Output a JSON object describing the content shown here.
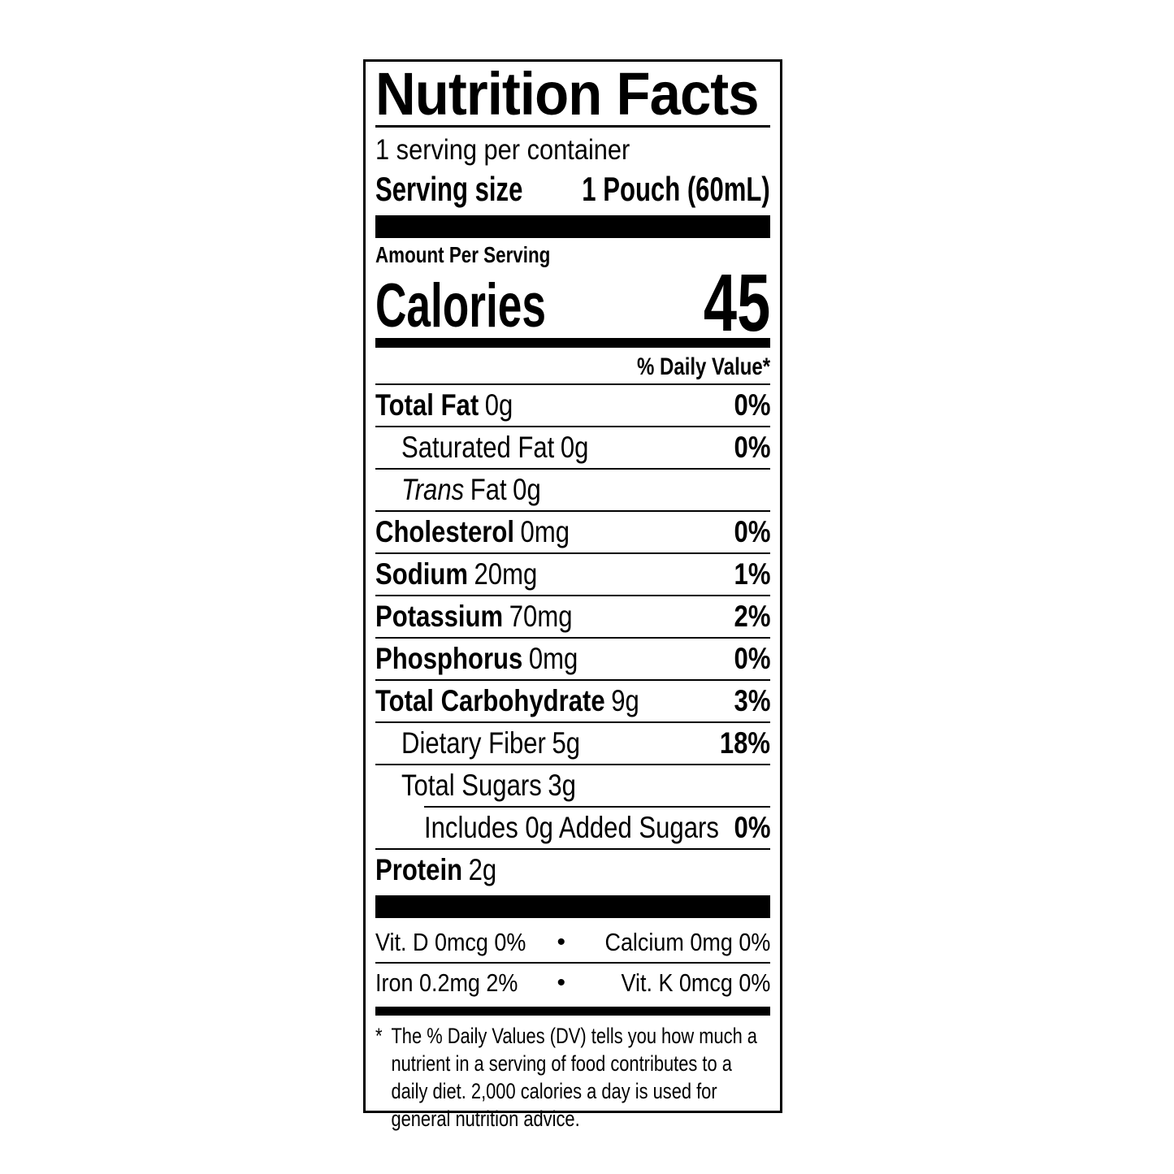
{
  "label": {
    "title": "Nutrition Facts",
    "servings_per_container": "1 serving per container",
    "serving_size": {
      "label": "Serving size",
      "value": "1 Pouch (60mL)"
    },
    "amount_per_serving": "Amount Per Serving",
    "calories": {
      "label": "Calories",
      "value": "45"
    },
    "daily_value_header": "% Daily Value*",
    "rows": [
      {
        "name": "Total Fat",
        "amount": "0g",
        "dv": "0%"
      },
      {
        "name": "Saturated Fat",
        "amount": "0g",
        "dv": "0%"
      },
      {
        "name_italic": "Trans",
        "name": "Fat",
        "amount": "0g",
        "dv": ""
      },
      {
        "name": "Cholesterol",
        "amount": "0mg",
        "dv": "0%"
      },
      {
        "name": "Sodium",
        "amount": "20mg",
        "dv": "1%"
      },
      {
        "name": "Potassium",
        "amount": "70mg",
        "dv": "2%"
      },
      {
        "name": "Phosphorus",
        "amount": "0mg",
        "dv": "0%"
      },
      {
        "name": "Total Carbohydrate",
        "amount": "9g",
        "dv": "3%"
      },
      {
        "name": "Dietary Fiber",
        "amount": "5g",
        "dv": "18%"
      },
      {
        "name": "Total Sugars",
        "amount": "3g",
        "dv": ""
      },
      {
        "name": "Includes 0g Added Sugars",
        "amount": "",
        "dv": "0%"
      },
      {
        "name": "Protein",
        "amount": "2g",
        "dv": ""
      }
    ],
    "bullet": "•",
    "micronutrients": [
      {
        "left": "Vit. D 0mcg 0%",
        "right": "Calcium 0mg 0%"
      },
      {
        "left": "Iron 0.2mg 2%",
        "right": "Vit. K 0mcg 0%"
      }
    ],
    "footnote": {
      "marker": "*",
      "text": "The % Daily Values (DV) tells you how much a nutrient in a serving of food contributes to a daily diet. 2,000 calories a day is used for general nutrition advice."
    },
    "colors": {
      "ink": "#000000",
      "paper": "#ffffff"
    }
  }
}
